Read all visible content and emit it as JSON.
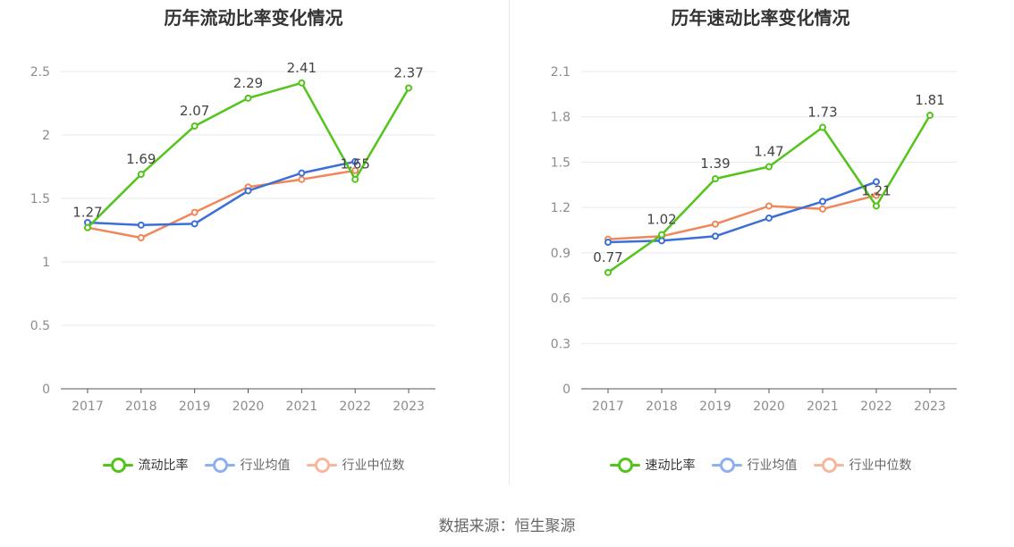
{
  "source": "数据来源：恒生聚源",
  "chart_data": [
    {
      "type": "line",
      "title": "历年流动比率变化情况",
      "categories": [
        "2017",
        "2018",
        "2019",
        "2020",
        "2021",
        "2022",
        "2023"
      ],
      "ylim": [
        0,
        2.5
      ],
      "yticks": [
        "0",
        "0.5",
        "1",
        "1.5",
        "2",
        "2.5"
      ],
      "ytick_values": [
        0,
        0.5,
        1,
        1.5,
        2,
        2.5
      ],
      "grid": true,
      "legend": "bottom",
      "series": [
        {
          "name": "流动比率",
          "color": "#52c41a",
          "labeled": true,
          "values": [
            1.27,
            1.69,
            2.07,
            2.29,
            2.41,
            1.65,
            2.37
          ],
          "labels": [
            "1.27",
            "1.69",
            "2.07",
            "2.29",
            "2.41",
            "1.65",
            "2.37"
          ]
        },
        {
          "name": "行业均值",
          "color": "#3c6fd6",
          "labeled": false,
          "values": [
            1.31,
            1.29,
            1.3,
            1.56,
            1.7,
            1.79,
            null
          ]
        },
        {
          "name": "行业中位数",
          "color": "#f0875a",
          "labeled": false,
          "values": [
            1.27,
            1.19,
            1.39,
            1.59,
            1.65,
            1.72,
            null
          ]
        }
      ]
    },
    {
      "type": "line",
      "title": "历年速动比率变化情况",
      "categories": [
        "2017",
        "2018",
        "2019",
        "2020",
        "2021",
        "2022",
        "2023"
      ],
      "ylim": [
        0,
        2.1
      ],
      "yticks": [
        "0",
        "0.3",
        "0.6",
        "0.9",
        "1.2",
        "1.5",
        "1.8",
        "2.1"
      ],
      "ytick_values": [
        0,
        0.3,
        0.6,
        0.9,
        1.2,
        1.5,
        1.8,
        2.1
      ],
      "grid": true,
      "legend": "bottom",
      "series": [
        {
          "name": "速动比率",
          "color": "#52c41a",
          "labeled": true,
          "values": [
            0.77,
            1.02,
            1.39,
            1.47,
            1.73,
            1.21,
            1.81
          ],
          "labels": [
            "0.77",
            "1.02",
            "1.39",
            "1.47",
            "1.73",
            "1.21",
            "1.81"
          ]
        },
        {
          "name": "行业均值",
          "color": "#3c6fd6",
          "labeled": false,
          "values": [
            0.97,
            0.98,
            1.01,
            1.13,
            1.24,
            1.37,
            null
          ]
        },
        {
          "name": "行业中位数",
          "color": "#f0875a",
          "labeled": false,
          "values": [
            0.99,
            1.01,
            1.09,
            1.21,
            1.19,
            1.28,
            null
          ]
        }
      ]
    }
  ]
}
